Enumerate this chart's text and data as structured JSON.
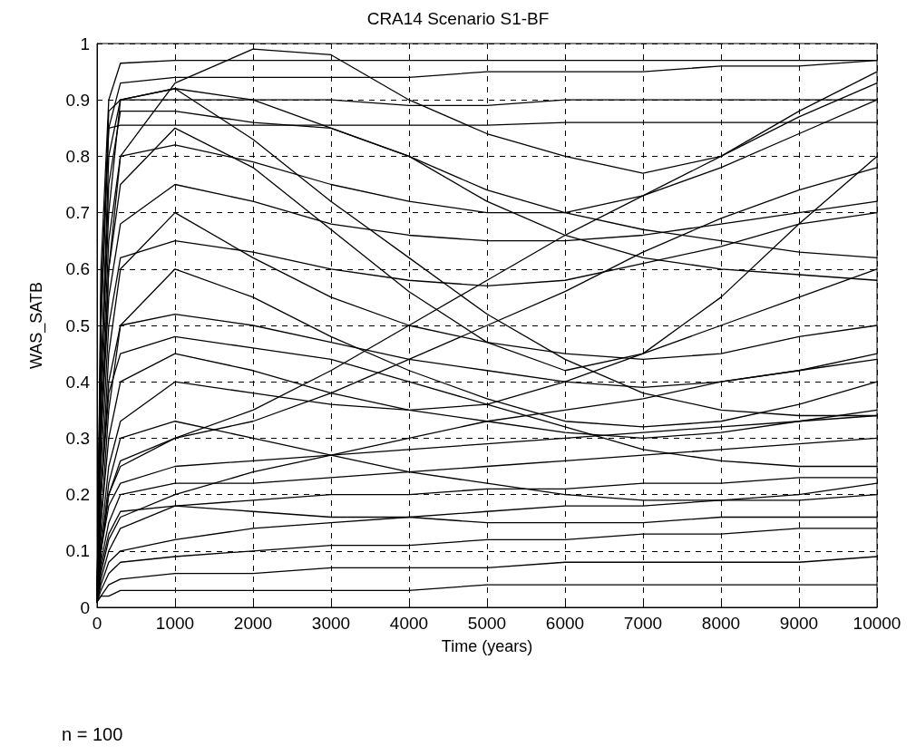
{
  "chart_data": {
    "type": "line",
    "title": "CRA14 Scenario S1-BF",
    "xlabel": "Time (years)",
    "ylabel": "WAS_SATB",
    "annotations": [
      "n = 100"
    ],
    "x": [
      0,
      50,
      150,
      300,
      1000,
      2000,
      3000,
      4000,
      5000,
      6000,
      7000,
      8000,
      9000,
      10000
    ],
    "xlim": [
      0,
      10000
    ],
    "xticks": [
      0,
      1000,
      2000,
      3000,
      4000,
      5000,
      6000,
      7000,
      8000,
      9000,
      10000
    ],
    "ylim": [
      0,
      1
    ],
    "yticks": [
      0,
      0.1,
      0.2,
      0.3,
      0.4,
      0.5,
      0.6,
      0.7,
      0.8,
      0.9,
      1
    ],
    "grid": true,
    "marker": "none",
    "line_style": "solid",
    "series": [
      {
        "color": "#000000",
        "values": [
          0.01,
          0.6,
          0.9,
          0.965,
          0.97,
          0.97,
          0.97,
          0.97,
          0.97,
          0.97,
          0.97,
          0.97,
          0.97,
          0.97
        ]
      },
      {
        "color": "#000000",
        "values": [
          0.01,
          0.5,
          0.85,
          0.93,
          0.94,
          0.94,
          0.94,
          0.94,
          0.95,
          0.95,
          0.95,
          0.96,
          0.96,
          0.97
        ]
      },
      {
        "color": "#000000",
        "values": [
          0.01,
          0.3,
          0.6,
          0.8,
          0.93,
          0.99,
          0.98,
          0.9,
          0.84,
          0.8,
          0.77,
          0.8,
          0.88,
          0.95
        ]
      },
      {
        "color": "#000000",
        "values": [
          0.01,
          0.4,
          0.7,
          0.9,
          0.92,
          0.9,
          0.85,
          0.8,
          0.72,
          0.66,
          0.62,
          0.6,
          0.59,
          0.58
        ]
      },
      {
        "color": "#000000",
        "values": [
          0.01,
          0.5,
          0.88,
          0.9,
          0.9,
          0.9,
          0.9,
          0.89,
          0.89,
          0.9,
          0.9,
          0.9,
          0.9,
          0.9
        ]
      },
      {
        "color": "#000000",
        "values": [
          0.01,
          0.55,
          0.85,
          0.855,
          0.855,
          0.855,
          0.855,
          0.855,
          0.855,
          0.86,
          0.86,
          0.86,
          0.86,
          0.86
        ]
      },
      {
        "color": "#000000",
        "values": [
          0.01,
          0.4,
          0.8,
          0.9,
          0.92,
          0.83,
          0.72,
          0.62,
          0.52,
          0.44,
          0.38,
          0.35,
          0.34,
          0.34
        ]
      },
      {
        "color": "#000000",
        "values": [
          0.01,
          0.3,
          0.6,
          0.75,
          0.85,
          0.78,
          0.67,
          0.56,
          0.47,
          0.42,
          0.45,
          0.55,
          0.68,
          0.8
        ]
      },
      {
        "color": "#000000",
        "values": [
          0.01,
          0.2,
          0.45,
          0.6,
          0.7,
          0.62,
          0.55,
          0.5,
          0.47,
          0.45,
          0.44,
          0.45,
          0.48,
          0.5
        ]
      },
      {
        "color": "#000000",
        "values": [
          0.01,
          0.25,
          0.5,
          0.62,
          0.65,
          0.63,
          0.6,
          0.58,
          0.57,
          0.58,
          0.61,
          0.64,
          0.68,
          0.7
        ]
      },
      {
        "color": "#000000",
        "values": [
          0.01,
          0.2,
          0.4,
          0.5,
          0.52,
          0.5,
          0.47,
          0.44,
          0.42,
          0.4,
          0.39,
          0.4,
          0.42,
          0.45
        ]
      },
      {
        "color": "#000000",
        "values": [
          0.01,
          0.15,
          0.3,
          0.4,
          0.45,
          0.42,
          0.38,
          0.35,
          0.33,
          0.31,
          0.3,
          0.31,
          0.33,
          0.35
        ]
      },
      {
        "color": "#000000",
        "values": [
          0.01,
          0.1,
          0.2,
          0.25,
          0.3,
          0.35,
          0.42,
          0.5,
          0.58,
          0.66,
          0.73,
          0.8,
          0.87,
          0.93
        ]
      },
      {
        "color": "#000000",
        "values": [
          0.01,
          0.1,
          0.2,
          0.26,
          0.3,
          0.33,
          0.38,
          0.44,
          0.5,
          0.56,
          0.63,
          0.69,
          0.74,
          0.78
        ]
      },
      {
        "color": "#000000",
        "values": [
          0.01,
          0.12,
          0.25,
          0.33,
          0.4,
          0.38,
          0.36,
          0.35,
          0.36,
          0.4,
          0.45,
          0.5,
          0.55,
          0.6
        ]
      },
      {
        "color": "#000000",
        "values": [
          0.01,
          0.1,
          0.18,
          0.22,
          0.25,
          0.26,
          0.27,
          0.28,
          0.29,
          0.3,
          0.31,
          0.32,
          0.33,
          0.34
        ]
      },
      {
        "color": "#000000",
        "values": [
          0.01,
          0.08,
          0.15,
          0.2,
          0.22,
          0.22,
          0.23,
          0.24,
          0.25,
          0.26,
          0.27,
          0.28,
          0.29,
          0.3
        ]
      },
      {
        "color": "#000000",
        "values": [
          0.01,
          0.05,
          0.1,
          0.14,
          0.18,
          0.19,
          0.2,
          0.2,
          0.21,
          0.21,
          0.22,
          0.22,
          0.23,
          0.23
        ]
      },
      {
        "color": "#000000",
        "values": [
          0.01,
          0.04,
          0.08,
          0.1,
          0.12,
          0.14,
          0.15,
          0.16,
          0.17,
          0.18,
          0.18,
          0.19,
          0.19,
          0.2
        ]
      },
      {
        "color": "#000000",
        "values": [
          0.01,
          0.03,
          0.06,
          0.08,
          0.09,
          0.1,
          0.11,
          0.11,
          0.12,
          0.12,
          0.13,
          0.13,
          0.14,
          0.14
        ]
      },
      {
        "color": "#000000",
        "values": [
          0.01,
          0.02,
          0.04,
          0.05,
          0.06,
          0.06,
          0.07,
          0.07,
          0.07,
          0.08,
          0.08,
          0.08,
          0.08,
          0.09
        ]
      },
      {
        "color": "#000000",
        "values": [
          0.01,
          0.02,
          0.02,
          0.03,
          0.03,
          0.03,
          0.03,
          0.03,
          0.04,
          0.04,
          0.04,
          0.04,
          0.04,
          0.04
        ]
      },
      {
        "color": "#000000",
        "values": [
          0.01,
          0.15,
          0.35,
          0.5,
          0.6,
          0.55,
          0.48,
          0.42,
          0.37,
          0.33,
          0.32,
          0.33,
          0.36,
          0.4
        ]
      },
      {
        "color": "#000000",
        "values": [
          0.01,
          0.3,
          0.55,
          0.68,
          0.75,
          0.72,
          0.68,
          0.66,
          0.65,
          0.65,
          0.66,
          0.68,
          0.7,
          0.72
        ]
      },
      {
        "color": "#000000",
        "values": [
          0.01,
          0.2,
          0.38,
          0.45,
          0.48,
          0.46,
          0.44,
          0.4,
          0.36,
          0.32,
          0.28,
          0.26,
          0.25,
          0.25
        ]
      },
      {
        "color": "#000000",
        "values": [
          0.01,
          0.1,
          0.22,
          0.3,
          0.33,
          0.3,
          0.27,
          0.24,
          0.22,
          0.2,
          0.19,
          0.19,
          0.2,
          0.22
        ]
      },
      {
        "color": "#000000",
        "values": [
          0.01,
          0.06,
          0.12,
          0.16,
          0.2,
          0.24,
          0.27,
          0.3,
          0.33,
          0.35,
          0.37,
          0.4,
          0.42,
          0.44
        ]
      },
      {
        "color": "#000000",
        "values": [
          0.01,
          0.35,
          0.65,
          0.8,
          0.82,
          0.79,
          0.75,
          0.72,
          0.7,
          0.7,
          0.73,
          0.78,
          0.84,
          0.9
        ]
      },
      {
        "color": "#000000",
        "values": [
          0.01,
          0.4,
          0.75,
          0.88,
          0.88,
          0.86,
          0.85,
          0.8,
          0.74,
          0.7,
          0.67,
          0.65,
          0.63,
          0.62
        ]
      },
      {
        "color": "#000000",
        "values": [
          0.01,
          0.07,
          0.13,
          0.17,
          0.18,
          0.17,
          0.16,
          0.16,
          0.15,
          0.15,
          0.15,
          0.16,
          0.16,
          0.16
        ]
      }
    ]
  }
}
